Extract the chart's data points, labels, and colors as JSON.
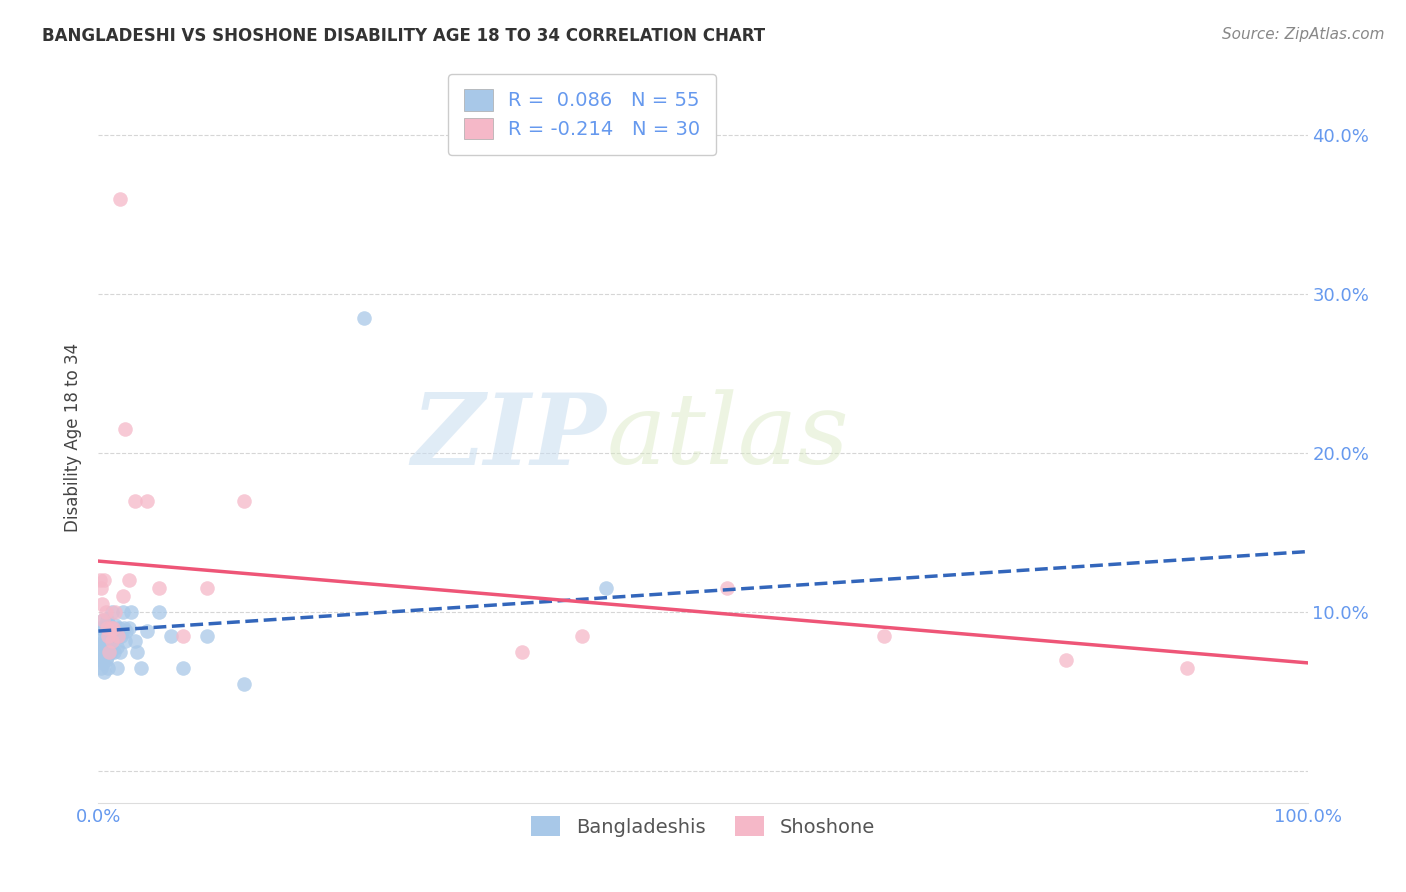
{
  "title": "BANGLADESHI VS SHOSHONE DISABILITY AGE 18 TO 34 CORRELATION CHART",
  "source": "Source: ZipAtlas.com",
  "ylabel": "Disability Age 18 to 34",
  "xlim": [
    0.0,
    1.0
  ],
  "ylim": [
    -0.02,
    0.44
  ],
  "x_ticks": [
    0.0,
    0.2,
    0.4,
    0.6,
    0.8,
    1.0
  ],
  "x_tick_labels": [
    "0.0%",
    "",
    "",
    "",
    "",
    "100.0%"
  ],
  "y_ticks": [
    0.0,
    0.1,
    0.2,
    0.3,
    0.4
  ],
  "y_tick_labels": [
    "",
    "10.0%",
    "20.0%",
    "30.0%",
    "40.0%"
  ],
  "watermark_zip": "ZIP",
  "watermark_atlas": "atlas",
  "legend_r_blue": "R =  0.086",
  "legend_n_blue": "N = 55",
  "legend_r_pink": "R = -0.214",
  "legend_n_pink": "N = 30",
  "blue_scatter_color": "#a8c8e8",
  "pink_scatter_color": "#f5b8c8",
  "blue_line_color": "#3366bb",
  "pink_line_color": "#ee5577",
  "tick_label_color": "#6699ee",
  "background_color": "#ffffff",
  "grid_color": "#cccccc",
  "blue_line_x0": 0.0,
  "blue_line_y0": 0.088,
  "blue_line_x1": 1.0,
  "blue_line_y1": 0.138,
  "pink_line_x0": 0.0,
  "pink_line_y0": 0.132,
  "pink_line_x1": 1.0,
  "pink_line_y1": 0.068,
  "bangladeshi_x": [
    0.001,
    0.001,
    0.001,
    0.002,
    0.002,
    0.002,
    0.003,
    0.003,
    0.003,
    0.004,
    0.004,
    0.004,
    0.005,
    0.005,
    0.005,
    0.006,
    0.006,
    0.006,
    0.007,
    0.007,
    0.008,
    0.008,
    0.008,
    0.009,
    0.009,
    0.01,
    0.01,
    0.011,
    0.011,
    0.012,
    0.013,
    0.014,
    0.015,
    0.015,
    0.016,
    0.017,
    0.018,
    0.019,
    0.02,
    0.021,
    0.022,
    0.023,
    0.025,
    0.027,
    0.03,
    0.032,
    0.035,
    0.04,
    0.05,
    0.06,
    0.07,
    0.09,
    0.12,
    0.22,
    0.42
  ],
  "bangladeshi_y": [
    0.09,
    0.08,
    0.075,
    0.085,
    0.07,
    0.065,
    0.09,
    0.08,
    0.072,
    0.095,
    0.082,
    0.068,
    0.088,
    0.075,
    0.062,
    0.09,
    0.078,
    0.07,
    0.095,
    0.072,
    0.088,
    0.076,
    0.065,
    0.092,
    0.08,
    0.09,
    0.075,
    0.1,
    0.082,
    0.088,
    0.075,
    0.092,
    0.078,
    0.065,
    0.085,
    0.09,
    0.075,
    0.085,
    0.1,
    0.09,
    0.082,
    0.088,
    0.09,
    0.1,
    0.082,
    0.075,
    0.065,
    0.088,
    0.1,
    0.085,
    0.065,
    0.085,
    0.055,
    0.285,
    0.115
  ],
  "shoshone_x": [
    0.001,
    0.002,
    0.003,
    0.004,
    0.005,
    0.006,
    0.007,
    0.008,
    0.009,
    0.01,
    0.011,
    0.012,
    0.014,
    0.016,
    0.02,
    0.022,
    0.025,
    0.03,
    0.04,
    0.05,
    0.07,
    0.09,
    0.12,
    0.4,
    0.52,
    0.65,
    0.8,
    0.9,
    0.018,
    0.35
  ],
  "shoshone_y": [
    0.12,
    0.115,
    0.105,
    0.095,
    0.12,
    0.1,
    0.09,
    0.085,
    0.075,
    0.09,
    0.082,
    0.09,
    0.1,
    0.085,
    0.11,
    0.215,
    0.12,
    0.17,
    0.17,
    0.115,
    0.085,
    0.115,
    0.17,
    0.085,
    0.115,
    0.085,
    0.07,
    0.065,
    0.36,
    0.075
  ]
}
